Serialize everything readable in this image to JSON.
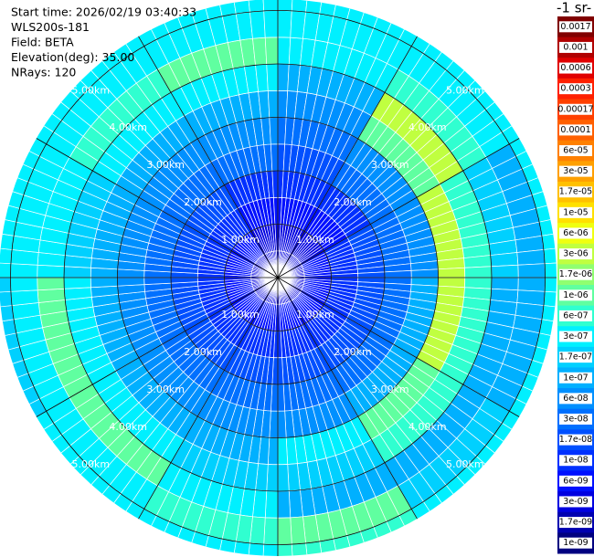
{
  "header": {
    "lines": [
      "Start time: 2026/02/19 03:40:33",
      "WLS200s-181",
      "Field: BETA",
      "Elevation(deg): 35.00",
      "NRays: 120"
    ]
  },
  "colorbar": {
    "title": "-1 sr-",
    "labels": [
      {
        "value": 0.0017,
        "label": "0.0017"
      },
      {
        "value": 0.001,
        "label": "0.001"
      },
      {
        "value": 0.0006,
        "label": "0.0006"
      },
      {
        "value": 0.0003,
        "label": "0.0003"
      },
      {
        "value": 0.00017,
        "label": "0.00017"
      },
      {
        "value": 0.0001,
        "label": "0.0001"
      },
      {
        "value": 6e-05,
        "label": "6e-05"
      },
      {
        "value": 3e-05,
        "label": "3e-05"
      },
      {
        "value": 1.7e-05,
        "label": "1.7e-05"
      },
      {
        "value": 1e-05,
        "label": "1e-05"
      },
      {
        "value": 6e-06,
        "label": "6e-06"
      },
      {
        "value": 3e-06,
        "label": "3e-06"
      },
      {
        "value": 1.7e-06,
        "label": "1.7e-06"
      },
      {
        "value": 1e-06,
        "label": "1e-06"
      },
      {
        "value": 6e-07,
        "label": "6e-07"
      },
      {
        "value": 3e-07,
        "label": "3e-07"
      },
      {
        "value": 1.7e-07,
        "label": "1.7e-07"
      },
      {
        "value": 1e-07,
        "label": "1e-07"
      },
      {
        "value": 6e-08,
        "label": "6e-08"
      },
      {
        "value": 3e-08,
        "label": "3e-08"
      },
      {
        "value": 1.7e-08,
        "label": "1.7e-08"
      },
      {
        "value": 1e-08,
        "label": "1e-08"
      },
      {
        "value": 6e-09,
        "label": "6e-09"
      },
      {
        "value": 3e-09,
        "label": "3e-09"
      },
      {
        "value": 1.7e-09,
        "label": "1.7e-09"
      },
      {
        "value": 1e-09,
        "label": "1e-09"
      }
    ],
    "colors": [
      "#800000",
      "#b00000",
      "#e00000",
      "#ff2000",
      "#ff4000",
      "#ff6000",
      "#ff8000",
      "#ffa000",
      "#ffc000",
      "#ffe000",
      "#f0ff10",
      "#c0ff40",
      "#90ff70",
      "#60ffa0",
      "#30ffd0",
      "#00f0ff",
      "#00d0ff",
      "#00b0ff",
      "#0090ff",
      "#0070ff",
      "#0050ff",
      "#0030ff",
      "#0010ff",
      "#0000e0",
      "#0000b0",
      "#000080"
    ]
  },
  "range_rings": [
    {
      "value": 1,
      "label": "1.00km"
    },
    {
      "value": 2,
      "label": "2.00km"
    },
    {
      "value": 3,
      "label": "3.00km"
    },
    {
      "value": 4,
      "label": "4.00km"
    },
    {
      "value": 5,
      "label": "5.00km"
    }
  ],
  "field": {
    "azimuth_deg": [
      0,
      30,
      60,
      90,
      120,
      150,
      180,
      210,
      240,
      270,
      300,
      330
    ],
    "range_bins_km": [
      0,
      0.5,
      1,
      1.5,
      2,
      2.5,
      3,
      3.5,
      4,
      4.5,
      5,
      5.5
    ],
    "values": [
      [
        3e-09,
        3e-09,
        6e-09,
        1e-08,
        1.7e-08,
        3e-08,
        6e-08,
        1e-07,
        3e-07,
        3e-07,
        3e-07
      ],
      [
        3e-09,
        3e-09,
        6e-09,
        1e-08,
        3e-08,
        6e-08,
        1e-06,
        3e-06,
        6e-07,
        3e-07,
        3e-07
      ],
      [
        3e-09,
        6e-09,
        1e-08,
        1.7e-08,
        3e-08,
        6e-08,
        3e-06,
        6e-07,
        1.7e-07,
        1e-07,
        3e-07
      ],
      [
        3e-09,
        6e-09,
        1e-08,
        1.7e-08,
        3e-08,
        1e-07,
        3e-06,
        6e-07,
        1e-07,
        1e-07,
        3e-07
      ],
      [
        3e-09,
        6e-09,
        1e-08,
        1.7e-08,
        3e-08,
        1e-07,
        1e-06,
        6e-07,
        1e-07,
        1.7e-07,
        3e-07
      ],
      [
        3e-09,
        6e-09,
        1e-08,
        1.7e-08,
        3e-08,
        6e-08,
        3e-07,
        1.7e-07,
        1e-07,
        1e-06,
        6e-07
      ],
      [
        3e-09,
        6e-09,
        1e-08,
        1.7e-08,
        3e-08,
        6e-08,
        1e-07,
        1.7e-07,
        3e-07,
        6e-07,
        3e-07
      ],
      [
        3e-09,
        6e-09,
        1e-08,
        1.7e-08,
        3e-08,
        6e-08,
        1e-07,
        3e-07,
        1e-06,
        3e-07,
        3e-07
      ],
      [
        3e-09,
        6e-09,
        1e-08,
        1.7e-08,
        3e-08,
        6e-08,
        1e-07,
        3e-07,
        1e-06,
        3e-07,
        1.7e-07
      ],
      [
        3e-09,
        6e-09,
        1e-08,
        1.7e-08,
        3e-08,
        6e-08,
        1e-07,
        1.7e-07,
        3e-07,
        3e-07,
        3e-07
      ],
      [
        3e-09,
        6e-09,
        1e-08,
        1.7e-08,
        3e-08,
        6e-08,
        1e-07,
        3e-07,
        6e-07,
        3e-07,
        3e-07
      ],
      [
        3e-09,
        3e-09,
        6e-09,
        1e-08,
        3e-08,
        6e-08,
        1e-07,
        3e-07,
        1e-06,
        3e-07,
        3e-07
      ]
    ]
  }
}
